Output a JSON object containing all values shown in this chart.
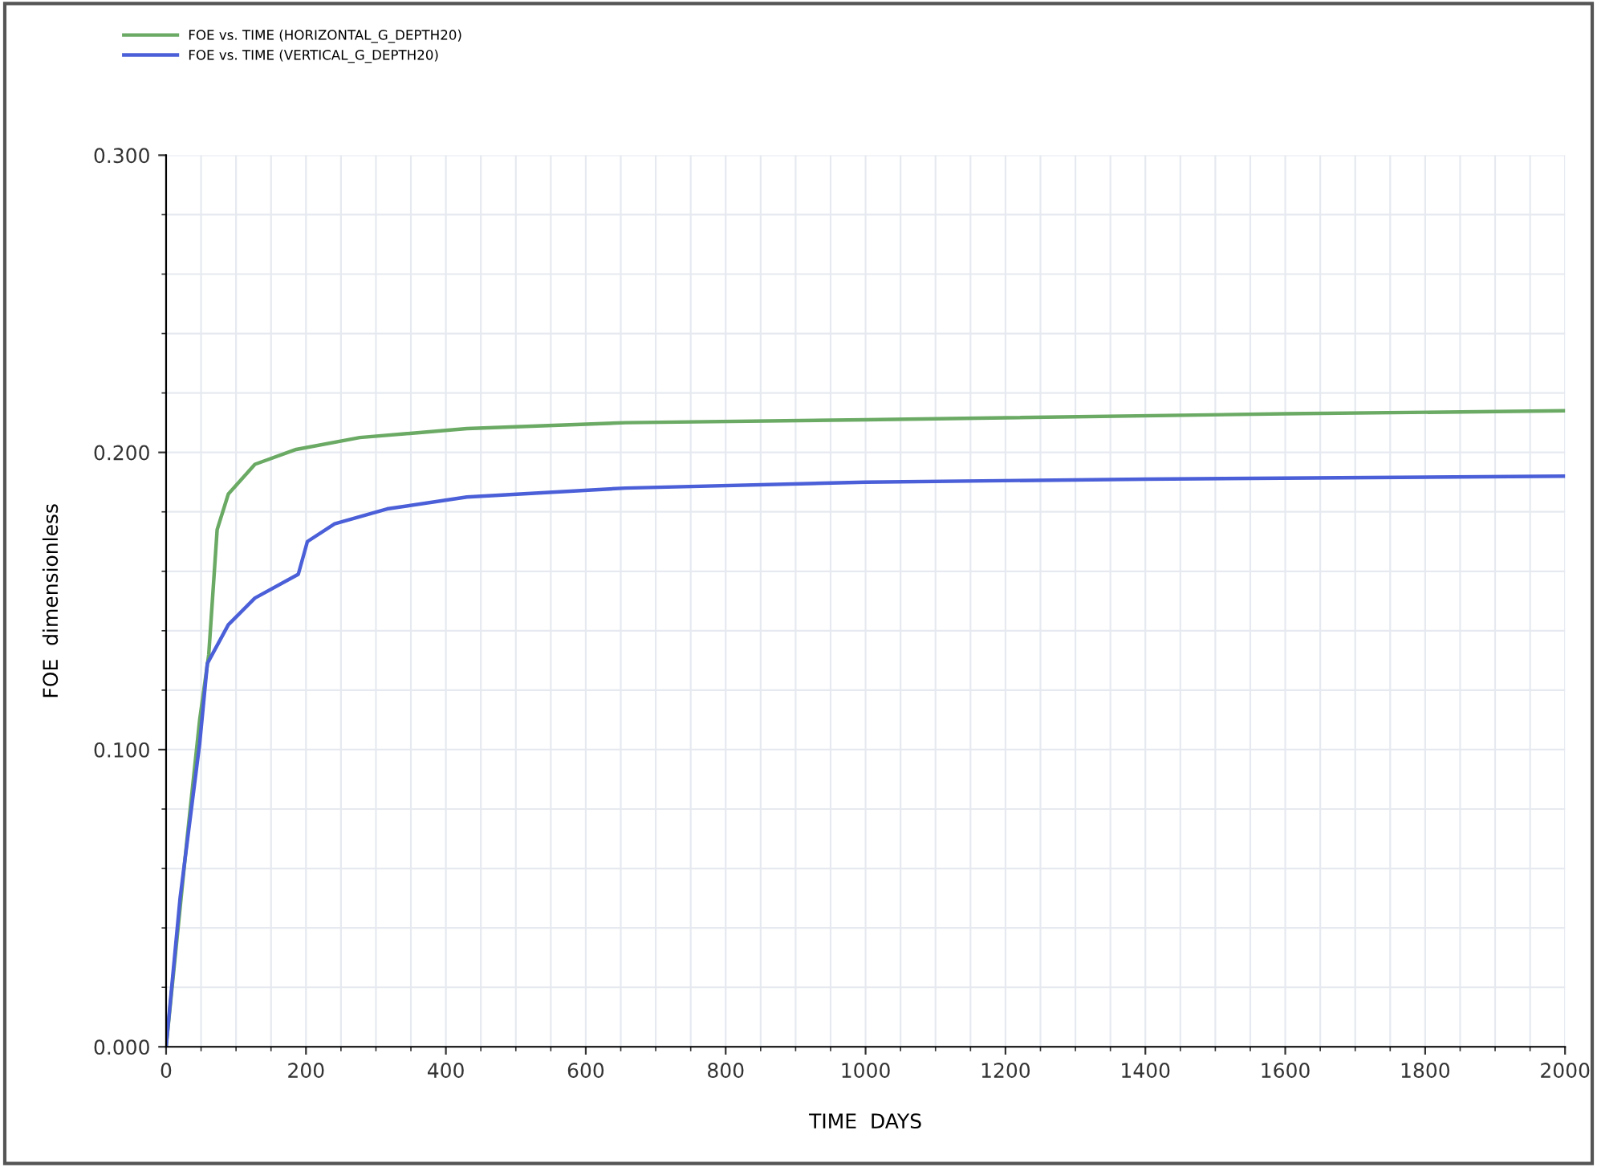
{
  "chart_data": {
    "type": "line",
    "xlabel": "TIME  DAYS",
    "ylabel": "FOE  dimensionless",
    "xlim": [
      0,
      2000
    ],
    "xticks": [
      0,
      200,
      400,
      600,
      800,
      1000,
      1200,
      1400,
      1600,
      1800,
      2000
    ],
    "ylim": [
      0,
      0.3
    ],
    "yticks": [
      {
        "value": 0,
        "label": "0.000"
      },
      {
        "value": 0.1,
        "label": "0.100"
      },
      {
        "value": 0.2,
        "label": "0.200"
      },
      {
        "value": 0.3,
        "label": "0.300"
      }
    ],
    "grid": true,
    "legend": "top left",
    "marker": "none",
    "line_style": "solid",
    "series": [
      {
        "name": "FOE vs. TIME (HORIZONTAL_G_DEPTH20)",
        "color": "#6aaa64",
        "x": [
          0,
          30,
          48,
          61,
          73,
          89,
          127,
          186,
          277,
          430,
          657,
          1000,
          1600,
          2000
        ],
        "values": [
          0,
          0.07,
          0.11,
          0.132,
          0.174,
          0.186,
          0.196,
          0.201,
          0.205,
          0.208,
          0.21,
          0.211,
          0.213,
          0.214
        ]
      },
      {
        "name": "FOE vs. TIME (VERTICAL_G_DEPTH20)",
        "color": "#4a5fd8",
        "x": [
          0,
          20,
          48,
          59,
          89,
          127,
          189,
          202,
          241,
          316,
          430,
          657,
          1000,
          1400,
          2000
        ],
        "values": [
          0,
          0.05,
          0.102,
          0.129,
          0.142,
          0.151,
          0.159,
          0.17,
          0.176,
          0.181,
          0.185,
          0.188,
          0.19,
          0.191,
          0.192
        ]
      }
    ]
  }
}
